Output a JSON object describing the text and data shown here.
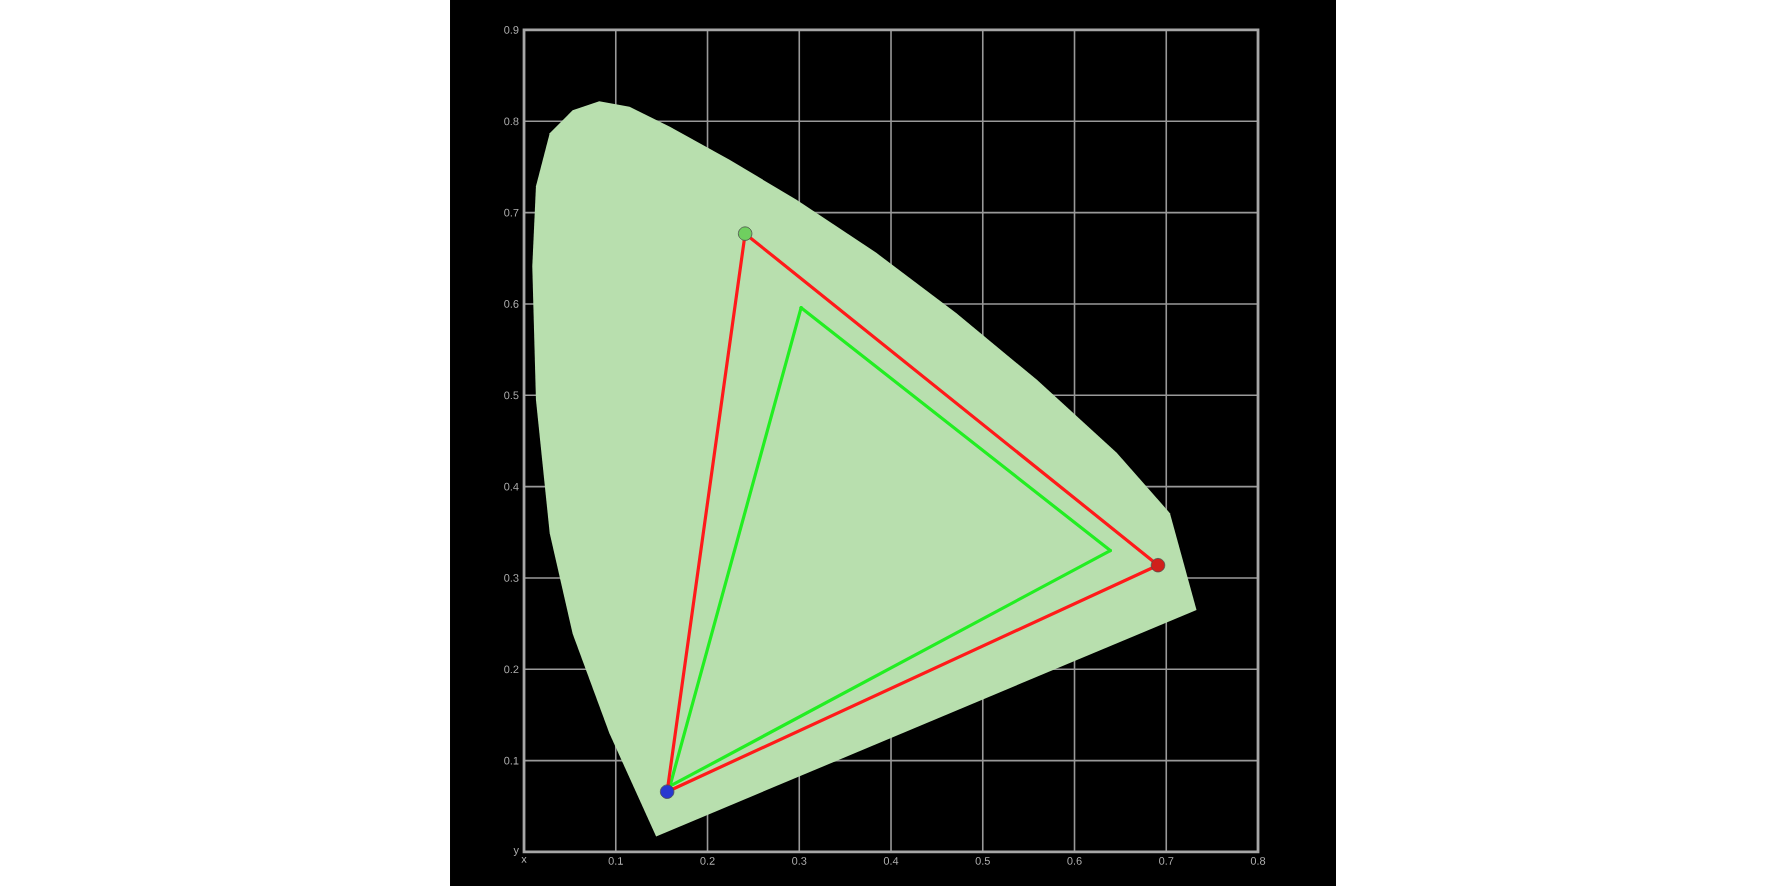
{
  "chart_data": {
    "type": "line",
    "xlim": [
      0,
      0.8
    ],
    "ylim": [
      0,
      0.9
    ],
    "xticks": [
      {
        "value": 0,
        "label": "x"
      },
      0.1,
      0.2,
      0.3,
      0.4,
      0.5,
      0.6,
      0.7,
      0.8
    ],
    "yticks": [
      {
        "value": 0,
        "label": "y"
      },
      0.1,
      0.2,
      0.3,
      0.4,
      0.5,
      0.6,
      0.7,
      0.8,
      0.9
    ],
    "grid": true,
    "series": [
      {
        "type": "area",
        "color": "#b8dfae",
        "x": [
          0.144,
          0.093,
          0.053,
          0.028,
          0.013,
          0.009,
          0.013,
          0.028,
          0.053,
          0.082,
          0.115,
          0.159,
          0.224,
          0.297,
          0.384,
          0.471,
          0.559,
          0.646,
          0.704,
          0.733,
          0.144
        ],
        "values": [
          0.017,
          0.13,
          0.239,
          0.349,
          0.495,
          0.641,
          0.729,
          0.787,
          0.812,
          0.822,
          0.816,
          0.794,
          0.758,
          0.714,
          0.656,
          0.59,
          0.517,
          0.437,
          0.371,
          0.265,
          0.017
        ]
      },
      {
        "type": "line",
        "color": "#22ee22",
        "x": [
          0.302,
          0.639
        ],
        "values": [
          0.596,
          0.33
        ]
      },
      {
        "type": "line",
        "color": "#22ee22",
        "x": [
          0.159,
          0.639
        ],
        "values": [
          0.072,
          0.33
        ]
      },
      {
        "type": "line",
        "color": "#22ee22",
        "x": [
          0.159,
          0.302
        ],
        "values": [
          0.072,
          0.596
        ]
      },
      {
        "type": "line",
        "color": "#ff1a1a",
        "x": [
          0.241,
          0.691
        ],
        "values": [
          0.677,
          0.314
        ]
      },
      {
        "type": "line",
        "color": "#ff1a1a",
        "x": [
          0.156,
          0.691
        ],
        "values": [
          0.066,
          0.314
        ]
      },
      {
        "type": "line",
        "color": "#ff1a1a",
        "x": [
          0.156,
          0.241
        ],
        "values": [
          0.066,
          0.677
        ]
      },
      {
        "type": "scatter",
        "marker": "circle",
        "colors": [
          "#6fcf5f",
          "#d0201b",
          "#2838d0"
        ],
        "x": [
          0.241,
          0.691,
          0.156
        ],
        "values": [
          0.677,
          0.314,
          0.066
        ]
      }
    ]
  }
}
